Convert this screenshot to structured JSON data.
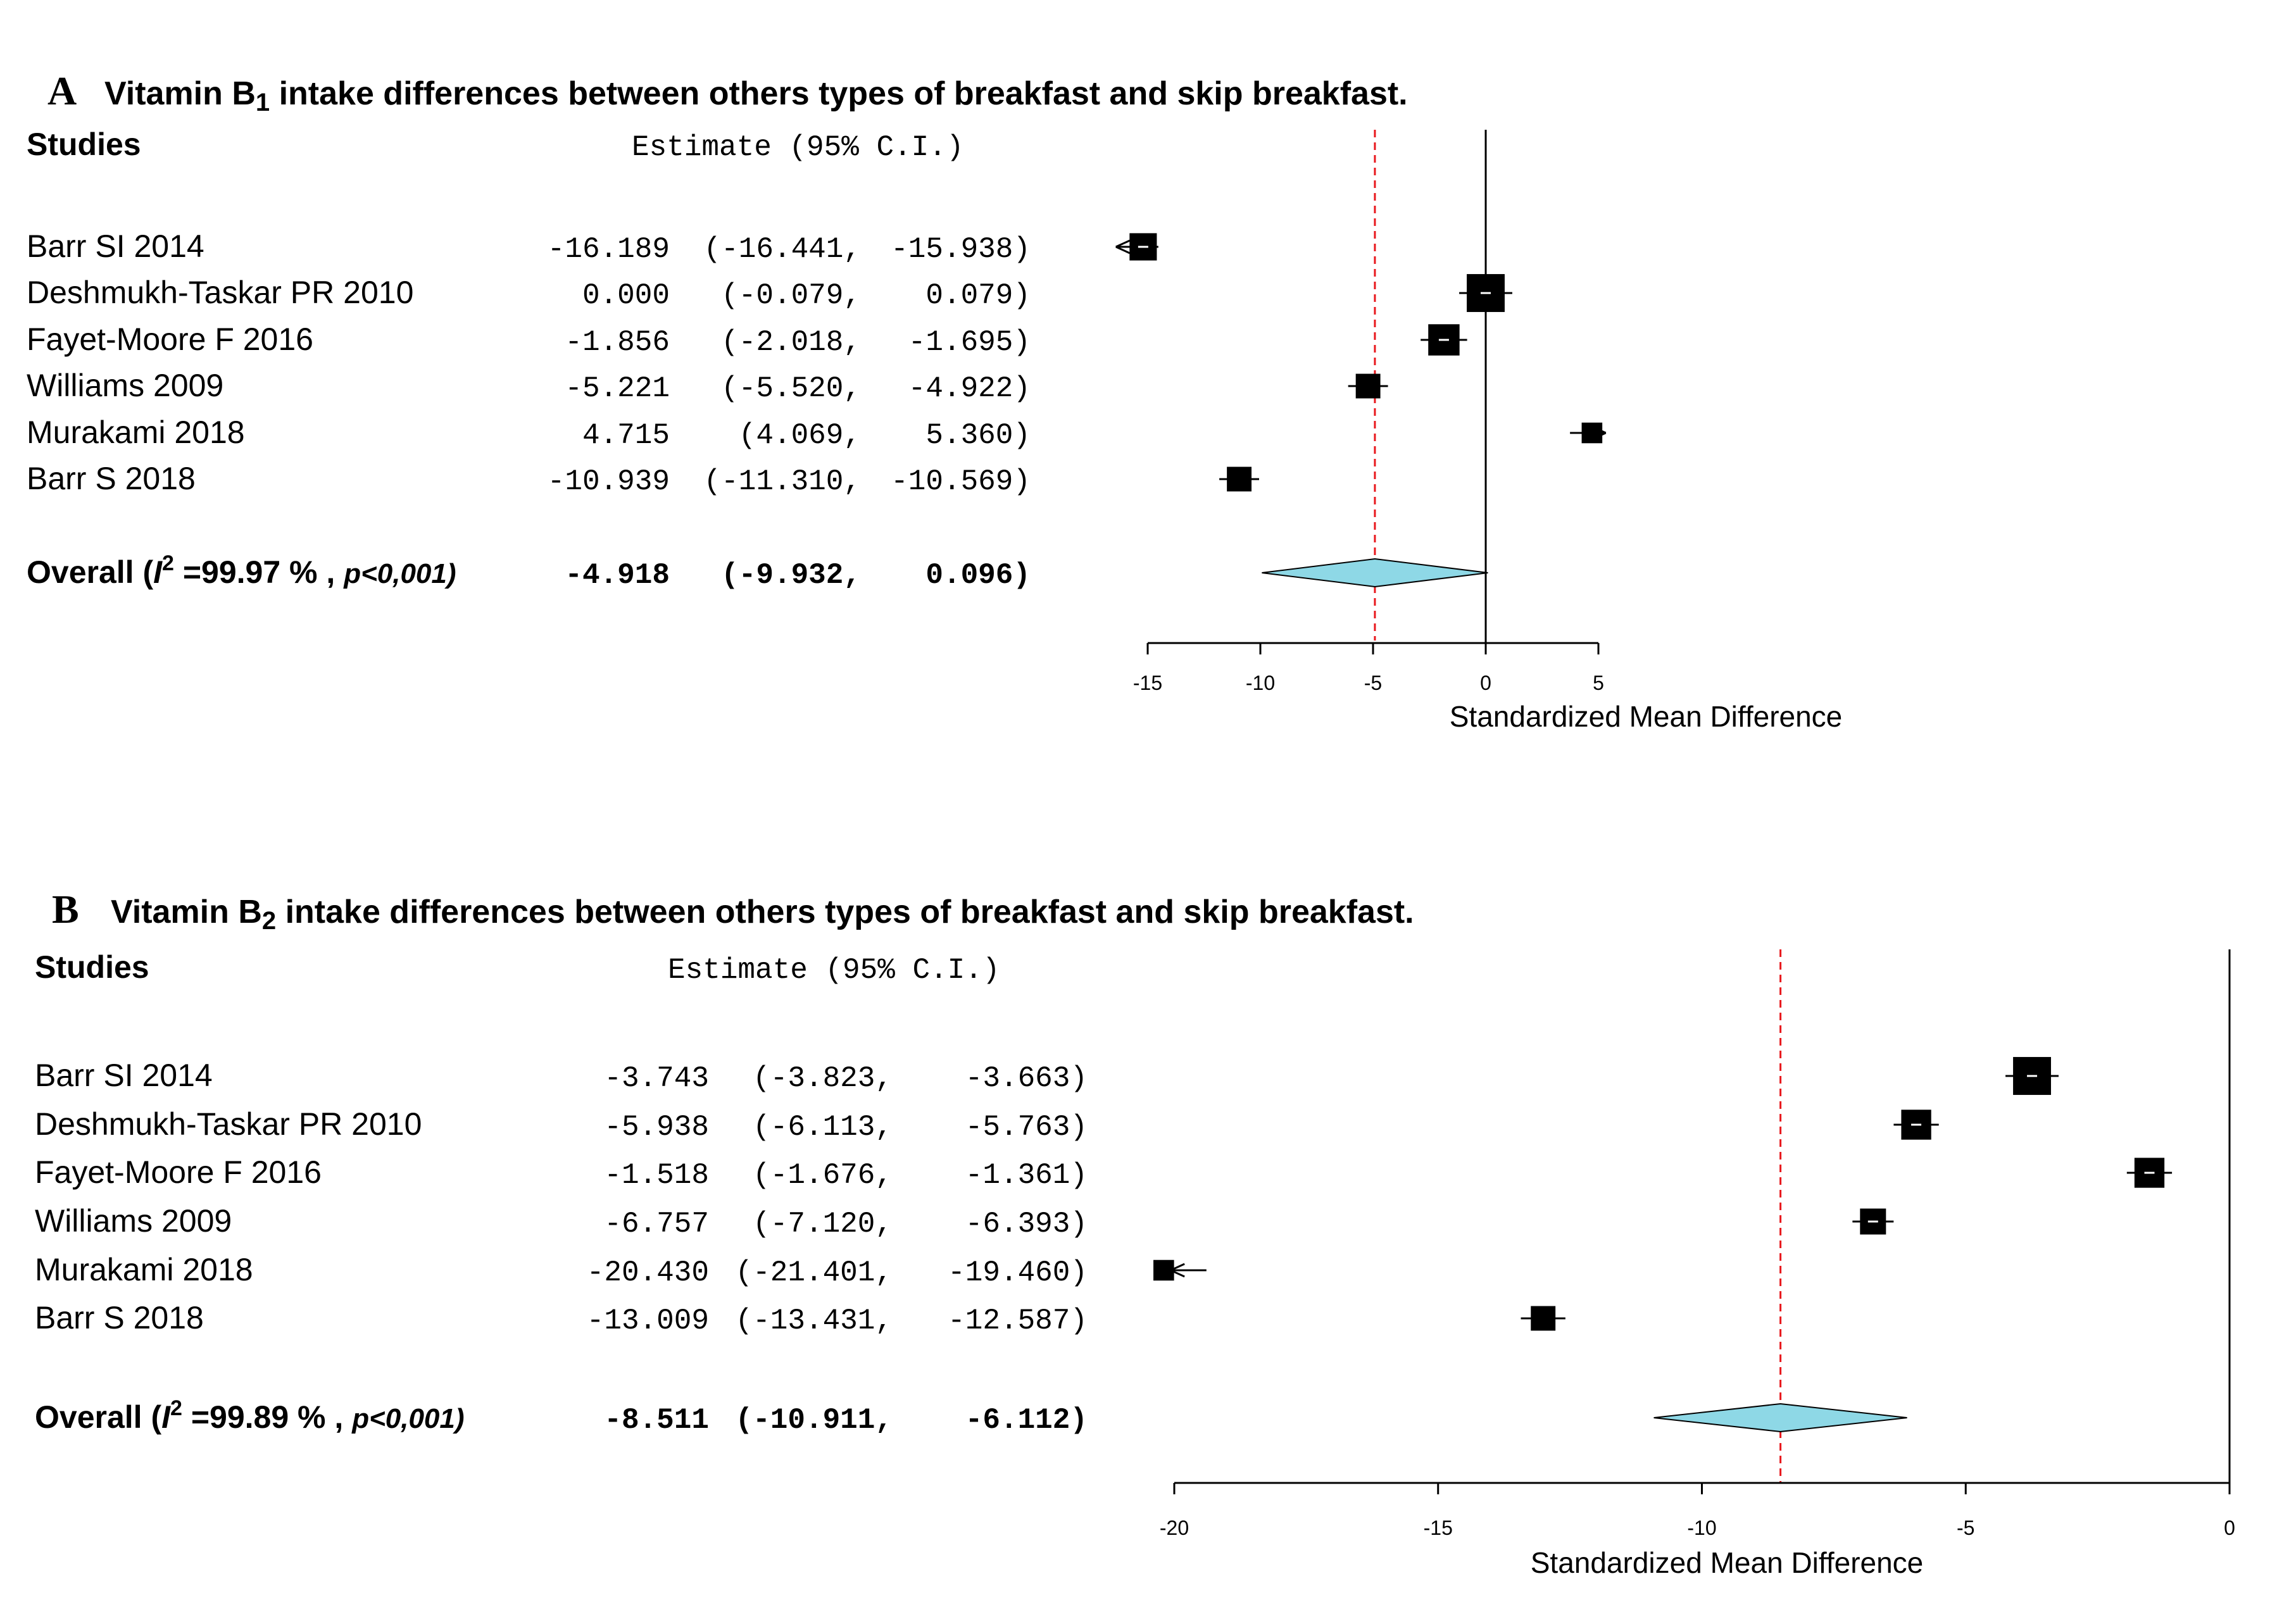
{
  "chart_data": [
    {
      "type": "forest",
      "panel_letter": "A",
      "title": "Vitamin B",
      "title_sub": "1",
      "title_rest": " intake differences between others types of breakfast and skip breakfast.",
      "studies_header": "Studies",
      "estimate_header": "Estimate (95% C.I.)",
      "xlabel": "Standardized Mean Difference",
      "xlim": [
        -15,
        5
      ],
      "ticks": [
        -15,
        -10,
        -5,
        0,
        5
      ],
      "tick_labels": [
        "-15",
        "-10",
        "-5",
        "0",
        "5"
      ],
      "reference_line": -4.918,
      "null_line": 0,
      "studies": [
        {
          "name": "Barr SI 2014",
          "est": -16.189,
          "lo": -16.441,
          "hi": -15.938,
          "est_text": "-16.189",
          "lo_text": "(-16.441,",
          "hi_text": "-15.938)",
          "weight": 0.55
        },
        {
          "name": "Deshmukh-Taskar PR 2010",
          "est": 0.0,
          "lo": -0.079,
          "hi": 0.079,
          "est_text": "0.000",
          "lo_text": "(-0.079,",
          "hi_text": "0.079)",
          "weight": 0.95
        },
        {
          "name": "Fayet-Moore F 2016",
          "est": -1.856,
          "lo": -2.018,
          "hi": -1.695,
          "est_text": "-1.856",
          "lo_text": "(-2.018,",
          "hi_text": "-1.695)",
          "weight": 0.7
        },
        {
          "name": "Williams 2009",
          "est": -5.221,
          "lo": -5.52,
          "hi": -4.922,
          "est_text": "-5.221",
          "lo_text": "(-5.520,",
          "hi_text": "-4.922)",
          "weight": 0.45
        },
        {
          "name": "Murakami 2018",
          "est": 4.715,
          "lo": 4.069,
          "hi": 5.36,
          "est_text": "4.715",
          "lo_text": "(4.069,",
          "hi_text": "5.360)",
          "weight": 0.3
        },
        {
          "name": "Barr S 2018",
          "est": -10.939,
          "lo": -11.31,
          "hi": -10.569,
          "est_text": "-10.939",
          "lo_text": "(-11.310,",
          "hi_text": "-10.569)",
          "weight": 0.45
        }
      ],
      "overall": {
        "label_prefix": "Overall (",
        "i_letter": "I",
        "sup": "2",
        "i2_text": " =99.97 % , ",
        "p_text": "p<0,001)",
        "est": -4.918,
        "lo": -9.932,
        "hi": 0.096,
        "est_text": "-4.918",
        "lo_text": "(-9.932,",
        "hi_text": "0.096)"
      }
    },
    {
      "type": "forest",
      "panel_letter": "B",
      "title": "Vitamin B",
      "title_sub": "2",
      "title_rest": " intake differences between others types of breakfast and skip breakfast.",
      "studies_header": "Studies",
      "estimate_header": "Estimate (95% C.I.)",
      "xlabel": "Standardized Mean Difference",
      "xlim": [
        -20,
        0
      ],
      "ticks": [
        -20,
        -15,
        -10,
        -5,
        0
      ],
      "tick_labels": [
        "-20",
        "-15",
        "-10",
        "-5",
        "0"
      ],
      "reference_line": -8.511,
      "null_line": 0,
      "studies": [
        {
          "name": "Barr SI 2014",
          "est": -3.743,
          "lo": -3.823,
          "hi": -3.663,
          "est_text": "-3.743",
          "lo_text": "(-3.823,",
          "hi_text": "-3.663)",
          "weight": 0.95
        },
        {
          "name": "Deshmukh-Taskar PR 2010",
          "est": -5.938,
          "lo": -6.113,
          "hi": -5.763,
          "est_text": "-5.938",
          "lo_text": "(-6.113,",
          "hi_text": "-5.763)",
          "weight": 0.65
        },
        {
          "name": "Fayet-Moore F 2016",
          "est": -1.518,
          "lo": -1.676,
          "hi": -1.361,
          "est_text": "-1.518",
          "lo_text": "(-1.676,",
          "hi_text": "-1.361)",
          "weight": 0.65
        },
        {
          "name": "Williams 2009",
          "est": -6.757,
          "lo": -7.12,
          "hi": -6.393,
          "est_text": "-6.757",
          "lo_text": "(-7.120,",
          "hi_text": "-6.393)",
          "weight": 0.5
        },
        {
          "name": "Murakami 2018",
          "est": -20.43,
          "lo": -21.401,
          "hi": -19.46,
          "est_text": "-20.430",
          "lo_text": "(-21.401,",
          "hi_text": "-19.460)",
          "weight": 0.3
        },
        {
          "name": "Barr S 2018",
          "est": -13.009,
          "lo": -13.431,
          "hi": -12.587,
          "est_text": "-13.009",
          "lo_text": "(-13.431,",
          "hi_text": "-12.587)",
          "weight": 0.45
        }
      ],
      "overall": {
        "label_prefix": "Overall (",
        "i_letter": "I",
        "sup": "2",
        "i2_text": " =99.89 % , ",
        "p_text": "p<0,001)",
        "est": -8.511,
        "lo": -10.911,
        "hi": -6.112,
        "est_text": "-8.511",
        "lo_text": "(-10.911,",
        "hi_text": "-6.112)"
      }
    }
  ],
  "colors": {
    "text": "#000000",
    "square": "#000000",
    "diamond_fill": "#8ed8e6",
    "diamond_stroke": "#000000",
    "reference_line": "#e8171c",
    "axis": "#000000"
  }
}
